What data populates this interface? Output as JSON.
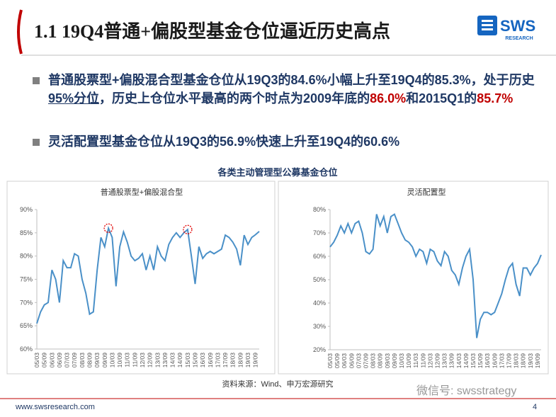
{
  "header": {
    "title": "1.1 19Q4普通+偏股型基金仓位逼近历史高点",
    "logo": "SWS",
    "logo_sub": "RESEARCH"
  },
  "bullets": [
    {
      "parts": [
        "普通股票型+偏股混合型基金仓位从19Q3的84.6%小幅上升至19Q4的85.3%，处于历史",
        "95%分位",
        "，历史上仓位水平最高的两个时点为2009年底的",
        "86.0%",
        "和2015Q1的",
        "85.7%"
      ]
    },
    {
      "parts": [
        "灵活配置型基金仓位从19Q3的56.9%快速上升至19Q4的60.6%"
      ]
    }
  ],
  "figure_title": "各类主动管理型公募基金仓位",
  "source": "资料来源：Wind、申万宏源研究",
  "watermark": "微信号: swsstrategy",
  "footer": {
    "url": "www.swsresearch.com",
    "page": "4"
  },
  "chart_data": [
    {
      "type": "line",
      "title": "普通股票型+偏股混合型",
      "color": "#4a90c8",
      "categories": [
        "05/03",
        null,
        "05/09",
        null,
        "06/03",
        null,
        "06/09",
        null,
        "07/03",
        null,
        "07/09",
        null,
        "08/03",
        null,
        "08/09",
        null,
        "09/03",
        null,
        "09/09",
        null,
        "10/03",
        null,
        "10/09",
        null,
        "11/03",
        null,
        "11/09",
        null,
        "12/03",
        null,
        "12/09",
        null,
        "13/03",
        null,
        "13/09",
        null,
        "14/03",
        null,
        "14/09",
        null,
        "15/03",
        null,
        "15/09",
        null,
        "16/03",
        null,
        "16/09",
        null,
        "17/03",
        null,
        "17/09",
        null,
        "18/03",
        null,
        "18/09",
        null,
        "19/03",
        null,
        "19/09",
        null
      ],
      "values": [
        65.5,
        68,
        69.5,
        70,
        77,
        75,
        70,
        79,
        77.5,
        77.5,
        80.5,
        80,
        75,
        72,
        67.5,
        68,
        77,
        84,
        82,
        86.0,
        84,
        73.5,
        82,
        85.2,
        83,
        80,
        79,
        79.5,
        80.5,
        77,
        80,
        77,
        82,
        80,
        79,
        82.5,
        84,
        85,
        84,
        85,
        85.7,
        80,
        74,
        82,
        79.5,
        80.5,
        81,
        80.5,
        81,
        81.5,
        84.5,
        84,
        83,
        81.5,
        78,
        84.5,
        82.5,
        84,
        84.6,
        85.3
      ],
      "ylim": [
        60,
        90
      ],
      "yticks": [
        {
          "value": 60,
          "label": "60%"
        },
        {
          "value": 65,
          "label": "65%"
        },
        {
          "value": 70,
          "label": "70%"
        },
        {
          "value": 75,
          "label": "75%"
        },
        {
          "value": 80,
          "label": "80%"
        },
        {
          "value": 85,
          "label": "85%"
        },
        {
          "value": 90,
          "label": "90%"
        }
      ]
    },
    {
      "type": "line",
      "title": "灵活配置型",
      "color": "#4a90c8",
      "categories": [
        "05/03",
        null,
        "05/09",
        null,
        "06/03",
        null,
        "06/09",
        null,
        "07/03",
        null,
        "07/09",
        null,
        "08/03",
        null,
        "08/09",
        null,
        "09/03",
        null,
        "09/09",
        null,
        "10/03",
        null,
        "10/09",
        null,
        "11/03",
        null,
        "11/09",
        null,
        "12/03",
        null,
        "12/09",
        null,
        "13/03",
        null,
        "13/09",
        null,
        "14/03",
        null,
        "14/09",
        null,
        "15/03",
        null,
        "15/09",
        null,
        "16/03",
        null,
        "16/09",
        null,
        "17/03",
        null,
        "17/09",
        null,
        "18/03",
        null,
        "18/09",
        null,
        "19/03",
        null,
        "19/09",
        null
      ],
      "values": [
        64,
        66,
        69,
        73,
        70,
        74,
        70,
        74,
        75,
        70,
        62,
        61,
        63,
        78,
        73,
        77,
        70,
        77,
        78,
        74,
        70,
        67,
        66,
        64,
        60,
        63,
        62,
        57,
        63,
        62,
        58,
        56,
        62,
        60,
        54,
        52,
        48,
        55,
        60,
        63,
        50,
        25,
        33,
        36,
        36,
        35,
        36,
        40,
        44,
        50,
        55,
        57,
        48,
        43,
        55,
        55,
        52,
        55,
        56.9,
        60.6
      ],
      "ylim": [
        20,
        80
      ],
      "yticks": [
        {
          "value": 20,
          "label": "20%"
        },
        {
          "value": 30,
          "label": "30%"
        },
        {
          "value": 40,
          "label": "40%"
        },
        {
          "value": 50,
          "label": "50%"
        },
        {
          "value": 60,
          "label": "60%"
        },
        {
          "value": 70,
          "label": "70%"
        },
        {
          "value": 80,
          "label": "80%"
        }
      ]
    }
  ]
}
